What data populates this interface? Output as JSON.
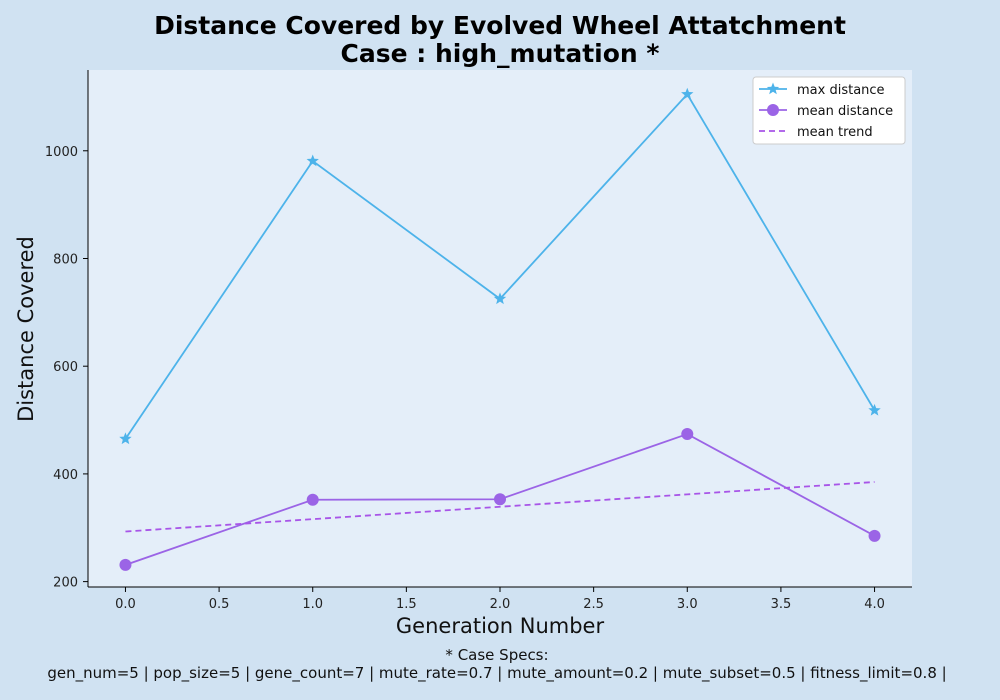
{
  "chart_data": {
    "type": "line",
    "title_line1": "Distance Covered by Evolved Wheel Attatchment",
    "title_line2": "Case : high_mutation *",
    "xlabel": "Generation Number",
    "ylabel": "Distance Covered",
    "xlim": [
      -0.2,
      4.2
    ],
    "ylim": [
      190,
      1150
    ],
    "x_ticks": [
      "0.0",
      "0.5",
      "1.0",
      "1.5",
      "2.0",
      "2.5",
      "3.0",
      "3.5",
      "4.0"
    ],
    "y_ticks": [
      "200",
      "400",
      "600",
      "800",
      "1000"
    ],
    "x": [
      0,
      1,
      2,
      3,
      4
    ],
    "series": [
      {
        "name": "max distance",
        "values": [
          465,
          981,
          725,
          1105,
          518
        ],
        "color": "#4db3ea",
        "marker": "star",
        "style": "solid"
      },
      {
        "name": "mean distance",
        "values": [
          231,
          352,
          353,
          474,
          285
        ],
        "color": "#9b64e6",
        "marker": "circle",
        "style": "solid"
      },
      {
        "name": "mean trend",
        "values": [
          293,
          316,
          339,
          362,
          385
        ],
        "color": "#a855e8",
        "marker": "none",
        "style": "dashed"
      }
    ],
    "legend_position": "top-right",
    "grid": false
  },
  "footnote": {
    "line1": "* Case Specs:",
    "line2": "gen_num=5 | pop_size=5 | gene_count=7 | mute_rate=0.7 | mute_amount=0.2 | mute_subset=0.5 | fitness_limit=0.8 |"
  },
  "colors": {
    "page_background": "#d0e2f2",
    "plot_background": "#e4eef9"
  }
}
